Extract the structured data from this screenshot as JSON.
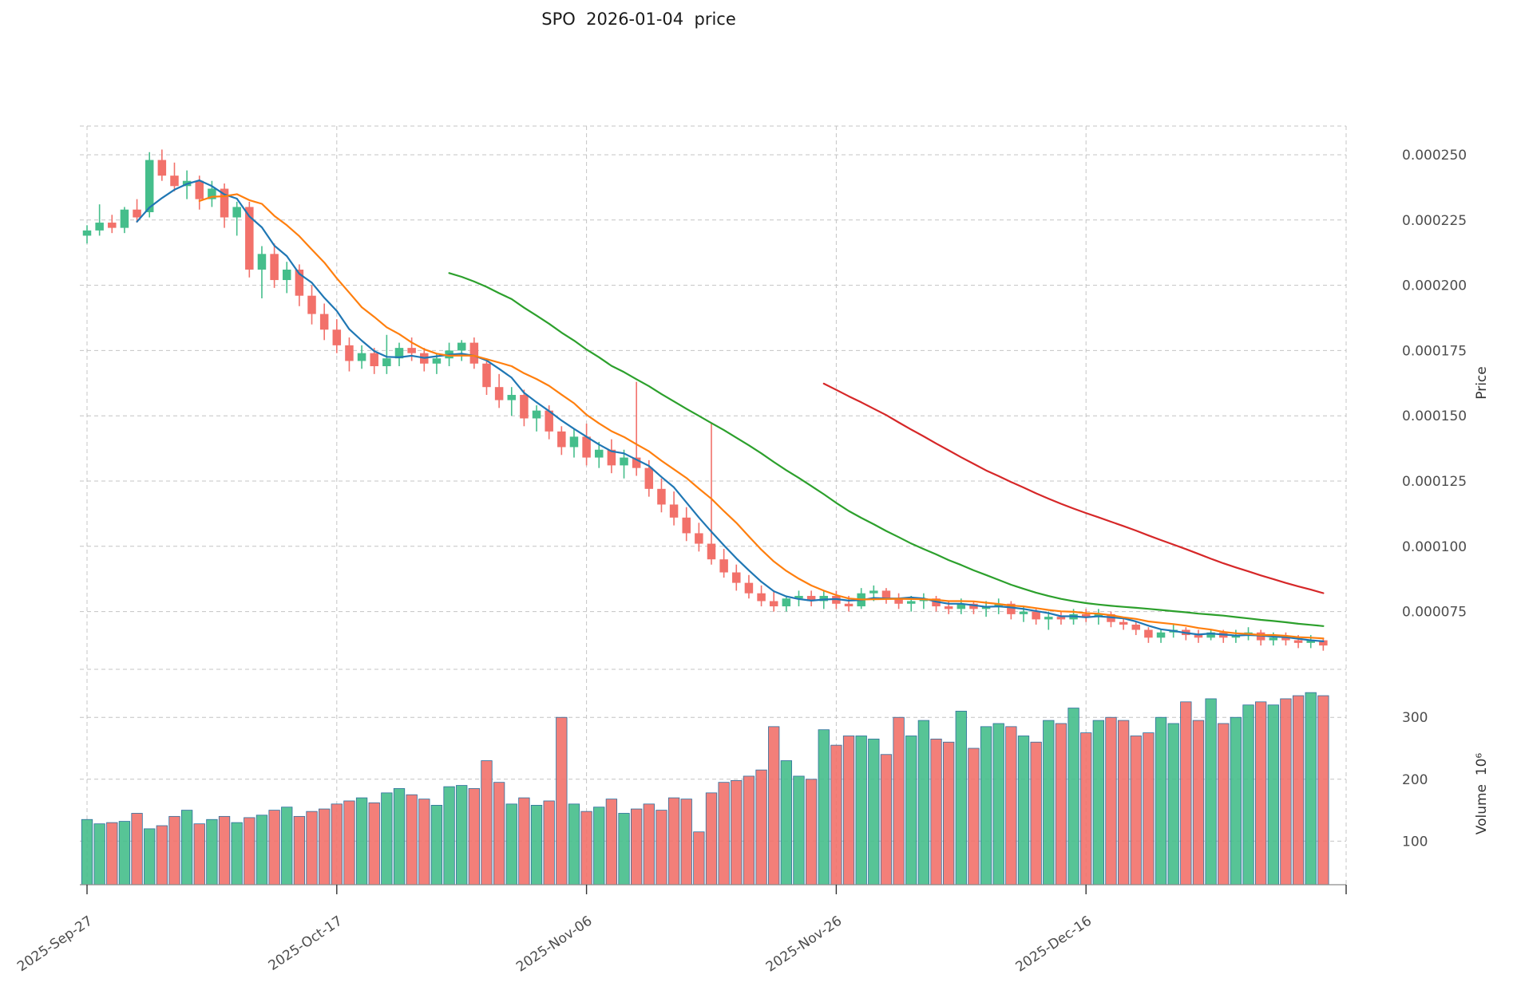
{
  "title": "SPO  2026-01-04  price",
  "axes": {
    "price_label": "Price",
    "volume_label": "Volume  10⁶"
  },
  "chart_data": {
    "type": "candlestick",
    "symbol": "SPO",
    "last_date": "2026-01-04",
    "price_unit_multiplier": 1e-06,
    "volume_unit_multiplier": 1000000.0,
    "legend_position": "none",
    "grid": "dashed",
    "price_axis": {
      "label": "Price",
      "side": "right",
      "ticks": [
        {
          "value": 250,
          "label": "0.000250"
        },
        {
          "value": 225,
          "label": "0.000225"
        },
        {
          "value": 200,
          "label": "0.000200"
        },
        {
          "value": 175,
          "label": "0.000175"
        },
        {
          "value": 150,
          "label": "0.000150"
        },
        {
          "value": 125,
          "label": "0.000125"
        },
        {
          "value": 100,
          "label": "0.000100"
        },
        {
          "value": 75,
          "label": "0.000075"
        }
      ]
    },
    "volume_axis": {
      "label": "Volume  10⁶",
      "side": "right",
      "ticks": [
        {
          "value": 100,
          "label": "100"
        },
        {
          "value": 200,
          "label": "200"
        },
        {
          "value": 300,
          "label": "300"
        }
      ]
    },
    "x_ticks": [
      {
        "day": 0,
        "label": "2025-Sep-27"
      },
      {
        "day": 20,
        "label": "2025-Oct-17"
      },
      {
        "day": 40,
        "label": "2025-Nov-06"
      },
      {
        "day": 60,
        "label": "2025-Nov-26"
      },
      {
        "day": 80,
        "label": "2025-Dec-16"
      }
    ],
    "moving_averages": [
      {
        "window": 5,
        "color": "#1f77b4"
      },
      {
        "window": 10,
        "color": "#ff7f0e"
      },
      {
        "window": 30,
        "color": "#2ca02c"
      },
      {
        "window": 60,
        "color": "#d62728"
      }
    ],
    "colors": {
      "up": "#45be8b",
      "down": "#f2716a",
      "volume_edge": "#2e6f9e",
      "grid": "#c4c4c4",
      "tick_text": "#4d4d4d",
      "spine": "#8c8c8c"
    },
    "ohlcv_note": "rows are [open, high, low, close, volume]; price in units of 0.000001; volume in millions; one row per day starting 2025-09-27",
    "ohlcv": [
      [
        219,
        223,
        216,
        221,
        135
      ],
      [
        221,
        231,
        219,
        224,
        128
      ],
      [
        224,
        227,
        220,
        222,
        130
      ],
      [
        222,
        230,
        220,
        229,
        132
      ],
      [
        229,
        233,
        224,
        226,
        145
      ],
      [
        228,
        251,
        226,
        248,
        120
      ],
      [
        248,
        252,
        240,
        242,
        125
      ],
      [
        242,
        247,
        236,
        238,
        140
      ],
      [
        238,
        244,
        233,
        240,
        150
      ],
      [
        240,
        242,
        229,
        233,
        128
      ],
      [
        233,
        240,
        230,
        237,
        135
      ],
      [
        237,
        239,
        222,
        226,
        140
      ],
      [
        226,
        232,
        219,
        230,
        130
      ],
      [
        230,
        232,
        203,
        206,
        138
      ],
      [
        206,
        215,
        195,
        212,
        142
      ],
      [
        212,
        216,
        199,
        202,
        150
      ],
      [
        202,
        209,
        197,
        206,
        155
      ],
      [
        206,
        208,
        192,
        196,
        140
      ],
      [
        196,
        200,
        185,
        189,
        148
      ],
      [
        189,
        193,
        179,
        183,
        152
      ],
      [
        183,
        187,
        174,
        177,
        160
      ],
      [
        177,
        180,
        167,
        171,
        165
      ],
      [
        171,
        177,
        168,
        174,
        170
      ],
      [
        174,
        176,
        166,
        169,
        162
      ],
      [
        169,
        181,
        166,
        172,
        178
      ],
      [
        172,
        178,
        169,
        176,
        185
      ],
      [
        176,
        180,
        171,
        174,
        175
      ],
      [
        174,
        176,
        167,
        170,
        168
      ],
      [
        170,
        174,
        166,
        172,
        158
      ],
      [
        172,
        178,
        169,
        175,
        188
      ],
      [
        175,
        179,
        171,
        178,
        190
      ],
      [
        178,
        180,
        168,
        170,
        185
      ],
      [
        170,
        172,
        158,
        161,
        230
      ],
      [
        161,
        166,
        153,
        156,
        195
      ],
      [
        156,
        161,
        150,
        158,
        160
      ],
      [
        158,
        160,
        146,
        149,
        170
      ],
      [
        149,
        154,
        144,
        152,
        158
      ],
      [
        152,
        154,
        141,
        144,
        165
      ],
      [
        144,
        146,
        135,
        138,
        300
      ],
      [
        138,
        145,
        134,
        142,
        160
      ],
      [
        142,
        147,
        131,
        134,
        148
      ],
      [
        134,
        140,
        130,
        137,
        155
      ],
      [
        137,
        141,
        128,
        131,
        168
      ],
      [
        131,
        137,
        126,
        134,
        145
      ],
      [
        134,
        163,
        127,
        130,
        152
      ],
      [
        130,
        133,
        119,
        122,
        160
      ],
      [
        122,
        126,
        113,
        116,
        150
      ],
      [
        116,
        121,
        108,
        111,
        170
      ],
      [
        111,
        115,
        102,
        105,
        168
      ],
      [
        105,
        109,
        98,
        101,
        115
      ],
      [
        101,
        147,
        93,
        95,
        178
      ],
      [
        95,
        99,
        88,
        90,
        195
      ],
      [
        90,
        93,
        83,
        86,
        198
      ],
      [
        86,
        89,
        80,
        82,
        205
      ],
      [
        82,
        85,
        77,
        79,
        215
      ],
      [
        79,
        83,
        75,
        77,
        285
      ],
      [
        77,
        81,
        75,
        80,
        230
      ],
      [
        80,
        83,
        77,
        81,
        205
      ],
      [
        81,
        83,
        77,
        79,
        200
      ],
      [
        79,
        83,
        76,
        81,
        280
      ],
      [
        81,
        83,
        76,
        78,
        255
      ],
      [
        78,
        81,
        75,
        77,
        270
      ],
      [
        77,
        84,
        76,
        82,
        270
      ],
      [
        82,
        85,
        79,
        83,
        265
      ],
      [
        83,
        84,
        78,
        80,
        240
      ],
      [
        80,
        82,
        76,
        78,
        300
      ],
      [
        78,
        81,
        75,
        79,
        270
      ],
      [
        79,
        82,
        76,
        80,
        295
      ],
      [
        80,
        81,
        75,
        77,
        265
      ],
      [
        77,
        79,
        74,
        76,
        260
      ],
      [
        76,
        80,
        74,
        78,
        310
      ],
      [
        78,
        79,
        74,
        76,
        250
      ],
      [
        76,
        79,
        73,
        77,
        285
      ],
      [
        77,
        80,
        74,
        78,
        290
      ],
      [
        78,
        79,
        72,
        74,
        285
      ],
      [
        74,
        77,
        71,
        75,
        270
      ],
      [
        75,
        76,
        70,
        72,
        260
      ],
      [
        72,
        75,
        68,
        73,
        295
      ],
      [
        73,
        75,
        70,
        72,
        290
      ],
      [
        72,
        76,
        70,
        74,
        315
      ],
      [
        74,
        76,
        71,
        73,
        275
      ],
      [
        73,
        76,
        70,
        74,
        295
      ],
      [
        74,
        75,
        69,
        71,
        300
      ],
      [
        71,
        73,
        68,
        70,
        295
      ],
      [
        70,
        71,
        66,
        68,
        270
      ],
      [
        68,
        69,
        63,
        65,
        275
      ],
      [
        65,
        68,
        63,
        67,
        300
      ],
      [
        67,
        70,
        65,
        68,
        290
      ],
      [
        68,
        69,
        64,
        66,
        325
      ],
      [
        66,
        68,
        63,
        65,
        295
      ],
      [
        65,
        68,
        64,
        67,
        330
      ],
      [
        67,
        68,
        63,
        65,
        290
      ],
      [
        65,
        68,
        63,
        66,
        300
      ],
      [
        66,
        69,
        64,
        67,
        320
      ],
      [
        67,
        68,
        62,
        64,
        325
      ],
      [
        64,
        67,
        62,
        65,
        320
      ],
      [
        65,
        67,
        62,
        64,
        330
      ],
      [
        64,
        66,
        61,
        63,
        335
      ],
      [
        63,
        66,
        61,
        64,
        340
      ],
      [
        64,
        65,
        60,
        62,
        335
      ]
    ]
  }
}
